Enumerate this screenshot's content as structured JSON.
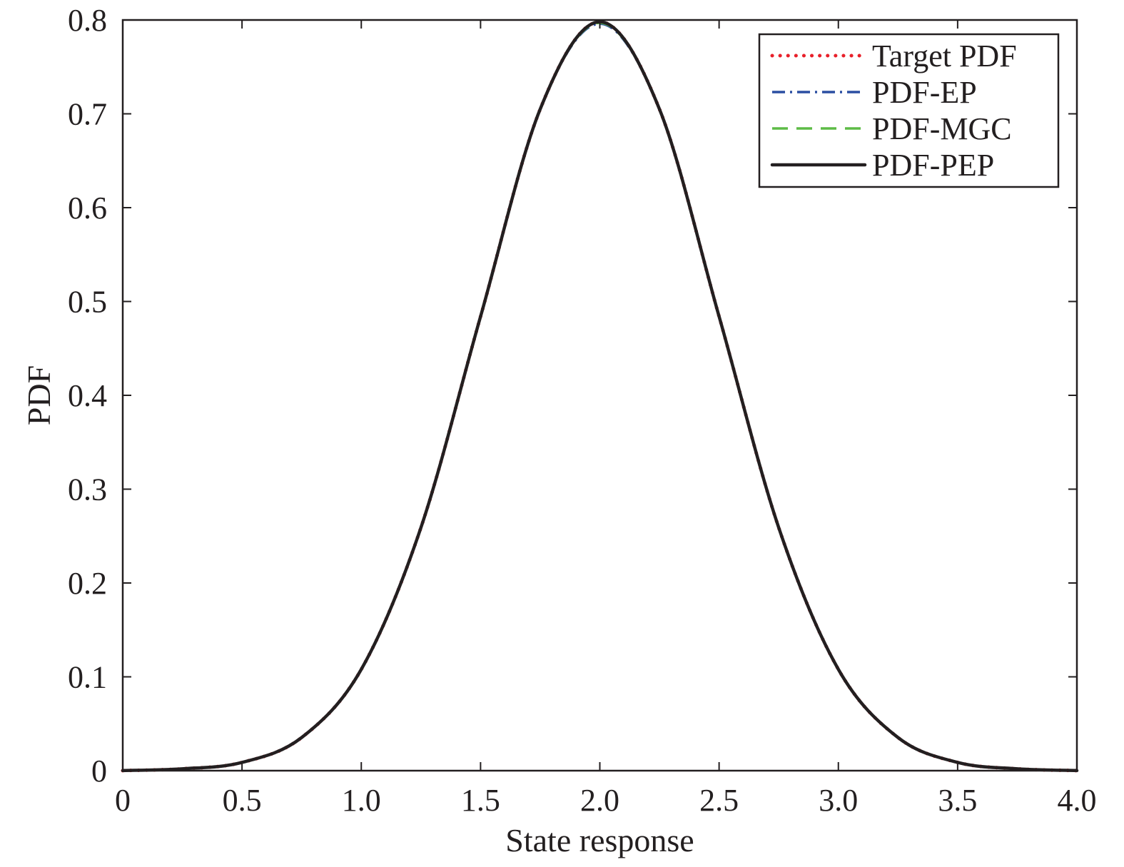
{
  "chart_data": {
    "type": "line",
    "title": "",
    "xlabel": "State response",
    "ylabel": "PDF",
    "xlim": [
      0,
      4.0
    ],
    "ylim": [
      0,
      0.8
    ],
    "x_ticks": [
      "0",
      "0.5",
      "1.0",
      "1.5",
      "2.0",
      "2.5",
      "3.0",
      "3.5",
      "4.0"
    ],
    "y_ticks": [
      "0",
      "0.1",
      "0.2",
      "0.3",
      "0.4",
      "0.5",
      "0.6",
      "0.7",
      "0.8"
    ],
    "grid": false,
    "legend_position": "top-right",
    "x": [
      0,
      0.25,
      0.5,
      0.75,
      1.0,
      1.25,
      1.5,
      1.75,
      2.0,
      2.25,
      2.5,
      2.75,
      3.0,
      3.25,
      3.5,
      3.75,
      4.0
    ],
    "series": [
      {
        "name": "Target PDF",
        "color": "#e8202a",
        "style": "dotted",
        "values": [
          0.0001,
          0.002,
          0.0088,
          0.0353,
          0.108,
          0.259,
          0.484,
          0.705,
          0.798,
          0.705,
          0.484,
          0.259,
          0.108,
          0.0353,
          0.0088,
          0.002,
          0.0001
        ]
      },
      {
        "name": "PDF-EP",
        "color": "#2b4ea2",
        "style": "dash-dot",
        "values": [
          0.0001,
          0.002,
          0.0088,
          0.0353,
          0.108,
          0.259,
          0.484,
          0.705,
          0.796,
          0.705,
          0.484,
          0.259,
          0.108,
          0.0353,
          0.0088,
          0.002,
          0.0001
        ]
      },
      {
        "name": "PDF-MGC",
        "color": "#5dbb46",
        "style": "dashed",
        "values": [
          0.0001,
          0.002,
          0.0088,
          0.0353,
          0.108,
          0.259,
          0.484,
          0.705,
          0.797,
          0.705,
          0.484,
          0.259,
          0.108,
          0.0353,
          0.0088,
          0.002,
          0.0001
        ]
      },
      {
        "name": "PDF-PEP",
        "color": "#231f20",
        "style": "solid",
        "values": [
          0.0001,
          0.002,
          0.0088,
          0.0353,
          0.108,
          0.259,
          0.484,
          0.705,
          0.798,
          0.705,
          0.484,
          0.259,
          0.108,
          0.0353,
          0.0088,
          0.002,
          0.0001
        ]
      }
    ]
  }
}
